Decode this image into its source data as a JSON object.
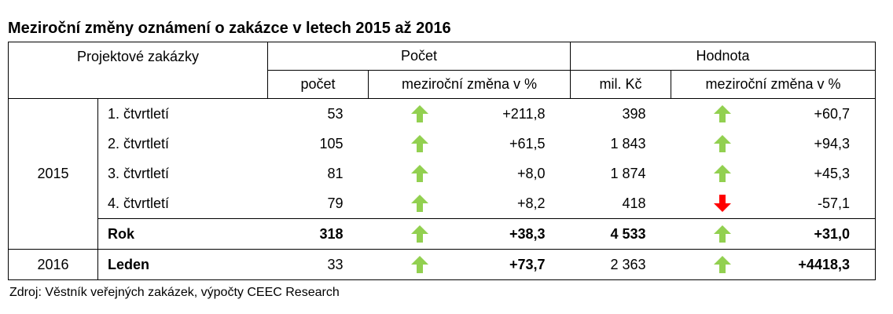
{
  "title": "Meziroční změny oznámení o zakázce v letech 2015 až 2016",
  "table": {
    "header": {
      "group": "Projektové zakázky",
      "count": "Počet",
      "value": "Hodnota",
      "columns": [
        "počet",
        "meziroční změna v %",
        "mil. Kč",
        "meziroční změna v %"
      ]
    },
    "rows": [
      {
        "year": "2015",
        "label": "1. čtvrtletí",
        "cells": [
          "53",
          "+211,8",
          "398",
          "+60,7"
        ]
      },
      {
        "label": "2. čtvrtletí",
        "cells": [
          "105",
          "+61,5",
          "1 843",
          "+94,3"
        ]
      },
      {
        "label": "3. čtvrtletí",
        "cells": [
          "81",
          "+8,0",
          "1 874",
          "+45,3"
        ]
      },
      {
        "label": "4. čtvrtletí",
        "cells": [
          "79",
          "+8,2",
          "418",
          "-57,1"
        ]
      },
      {
        "label": "Rok",
        "cells": [
          "318",
          "+38,3",
          "4 533",
          "+31,0"
        ]
      },
      {
        "year": "2016",
        "label": "Leden",
        "cells": [
          "33",
          "+73,7",
          "2 363",
          "+4418,3"
        ]
      }
    ]
  },
  "source": "Zdroj: Věstník veřejných zakázek, výpočty CEEC Research"
}
